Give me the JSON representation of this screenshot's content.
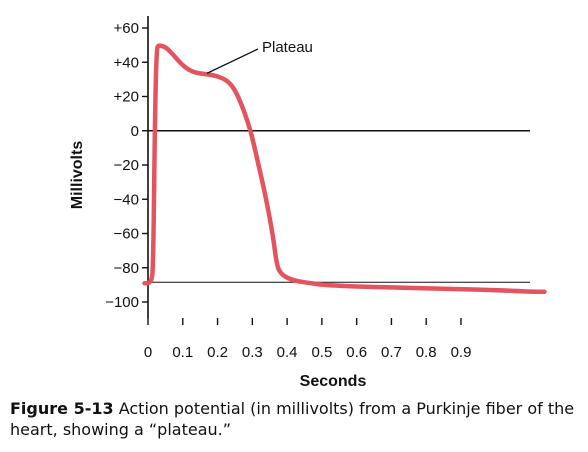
{
  "chart_data": {
    "type": "line",
    "title": "",
    "xlabel": "Seconds",
    "ylabel": "Millivolts",
    "xlim": [
      0,
      1.15
    ],
    "ylim": [
      -110,
      62
    ],
    "x_ticks": [
      0,
      0.1,
      0.2,
      0.3,
      0.4,
      0.5,
      0.6,
      0.7,
      0.8,
      0.9
    ],
    "x_tick_labels": [
      "0",
      "0.1",
      "0.2",
      "0.3",
      "0.4",
      "0.5",
      "0.6",
      "0.7",
      "0.8",
      "0.9"
    ],
    "y_ticks": [
      60,
      40,
      20,
      0,
      -20,
      -40,
      -60,
      -80,
      -100
    ],
    "y_tick_labels": [
      "+60",
      "+40",
      "+20",
      "0",
      "−20",
      "−40",
      "−60",
      "−80",
      "−100"
    ],
    "reference_lines": [
      0,
      -88.5
    ],
    "series": [
      {
        "color": "#e3545f",
        "x": [
          -0.01,
          0.0,
          0.01,
          0.015,
          0.02,
          0.025,
          0.03,
          0.05,
          0.07,
          0.1,
          0.13,
          0.17,
          0.2,
          0.23,
          0.25,
          0.27,
          0.29,
          0.3,
          0.32,
          0.34,
          0.36,
          0.37,
          0.38,
          0.4,
          0.43,
          0.47,
          0.5,
          0.6,
          0.7,
          0.8,
          0.9,
          1.0,
          1.1,
          1.14
        ],
        "y": [
          -89,
          -89,
          -88,
          -80,
          10,
          48,
          50,
          49,
          45,
          38,
          34,
          33,
          32,
          29,
          24,
          15,
          3,
          -4,
          -22,
          -40,
          -62,
          -78,
          -83,
          -86,
          -88,
          -89,
          -90,
          -91,
          -91.5,
          -92,
          -92.5,
          -93,
          -94,
          -94
        ]
      }
    ],
    "annotations": [
      {
        "text": "Plateau",
        "at_x": 0.17,
        "at_y": 33
      }
    ],
    "grid": false,
    "legend": "none"
  },
  "caption": {
    "label": "Figure 5-13",
    "text": "Action potential (in millivolts) from a Purkinje fiber of the heart, showing a “plateau.”"
  }
}
